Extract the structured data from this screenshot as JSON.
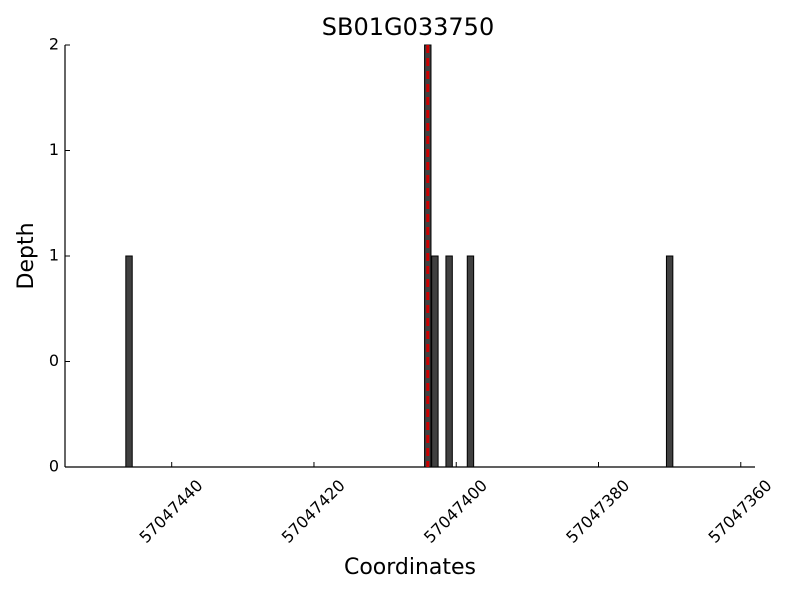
{
  "chart_data": {
    "type": "bar",
    "title": "SB01G033750",
    "x_label": "Coordinates",
    "y_label": "Depth",
    "x": [
      57047446,
      57047404,
      57047403,
      57047401,
      57047398,
      57047370
    ],
    "values": [
      1,
      2,
      1,
      1,
      1,
      1
    ],
    "color": "#404040",
    "marker": {
      "x": 57047404,
      "color": "#cc0000"
    },
    "xlim": [
      57047455,
      57047358
    ],
    "xticks": [
      57047440,
      57047420,
      57047400,
      57047380,
      57047360
    ],
    "ylim": [
      0,
      2
    ],
    "yticks": [
      {
        "value": 0,
        "label": "0"
      },
      {
        "value": 0.5,
        "label": "0"
      },
      {
        "value": 1,
        "label": "1"
      },
      {
        "value": 1.5,
        "label": "1"
      },
      {
        "value": 2,
        "label": "2"
      }
    ],
    "grid": false
  }
}
